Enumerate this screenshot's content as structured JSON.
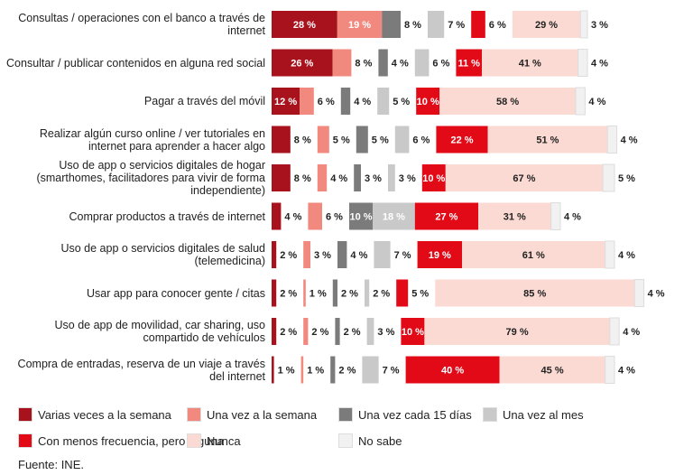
{
  "chart_data": {
    "type": "stacked-bar-horizontal",
    "categories": [
      "Consultas / operaciones con el banco a través de internet",
      "Consultar / publicar contenidos en alguna red social",
      "Pagar a través del móvil",
      "Realizar algún curso online / ver tutoriales en internet para aprender a hacer algo",
      "Uso de app o servicios digitales de hogar (smarthomes, facilitadores para vivir de forma independiente)",
      "Comprar productos a través de internet",
      "Uso de app o servicios digitales de salud (telemedicina)",
      "Usar app para conocer gente / citas",
      "Uso de app de movilidad, car sharing, uso compartido de vehículos",
      "Compra de entradas, reserva de un viaje a través del internet"
    ],
    "series": [
      {
        "name": "Varias veces a la semana",
        "color": "#a8121c",
        "values": [
          28,
          26,
          12,
          8,
          8,
          4,
          2,
          2,
          2,
          1
        ],
        "value_labels": [
          "28 %",
          "26 %",
          "12 %",
          "8 %",
          "8 %",
          "4 %",
          "2 %",
          "2 %",
          "2 %",
          "1 %"
        ]
      },
      {
        "name": "Una vez a la semana",
        "color": "#f2897e",
        "values": [
          19,
          8,
          6,
          5,
          4,
          6,
          3,
          1,
          2,
          1
        ],
        "value_labels": [
          "19 %",
          "8 %",
          "6 %",
          "5 %",
          "4 %",
          "6 %",
          "3 %",
          "1 %",
          "2 %",
          "1 %"
        ]
      },
      {
        "name": "Una vez cada 15 días",
        "color": "#7b7b7b",
        "values": [
          8,
          4,
          4,
          5,
          3,
          10,
          4,
          2,
          2,
          2
        ],
        "value_labels": [
          "8 %",
          "4 %",
          "4 %",
          "5 %",
          "3 %",
          "10 %",
          "4 %",
          "2 %",
          "2 %",
          "2 %"
        ]
      },
      {
        "name": "Una vez al mes",
        "color": "#c9c9c9",
        "values": [
          7,
          6,
          5,
          6,
          3,
          18,
          7,
          2,
          3,
          7
        ],
        "value_labels": [
          "7 %",
          "6 %",
          "5 %",
          "6 %",
          "3 %",
          "18 %",
          "7 %",
          "2 %",
          "3 %",
          "7 %"
        ]
      },
      {
        "name": "Con menos frecuencia, pero alguna",
        "color": "#e30a18",
        "values": [
          6,
          11,
          10,
          22,
          10,
          27,
          19,
          5,
          10,
          40
        ],
        "value_labels": [
          "6 %",
          "11 %",
          "10 %",
          "22 %",
          "10 %",
          "27 %",
          "19 %",
          "5 %",
          "10 %",
          "40 %"
        ]
      },
      {
        "name": "Nunca",
        "color": "#fbdad3",
        "values": [
          29,
          41,
          58,
          51,
          67,
          31,
          61,
          85,
          79,
          45
        ],
        "value_labels": [
          "29 %",
          "41 %",
          "58 %",
          "51 %",
          "67 %",
          "31 %",
          "61 %",
          "85 %",
          "79 %",
          "45 %"
        ]
      },
      {
        "name": "No sabe",
        "color": "#f1f1f1",
        "values": [
          3,
          4,
          4,
          4,
          5,
          4,
          4,
          4,
          4,
          4
        ],
        "value_labels": [
          "3 %",
          "4 %",
          "4 %",
          "4 %",
          "5 %",
          "4 %",
          "4 %",
          "4 %",
          "4 %",
          "4 %"
        ]
      }
    ],
    "source": "Fuente: INE."
  }
}
